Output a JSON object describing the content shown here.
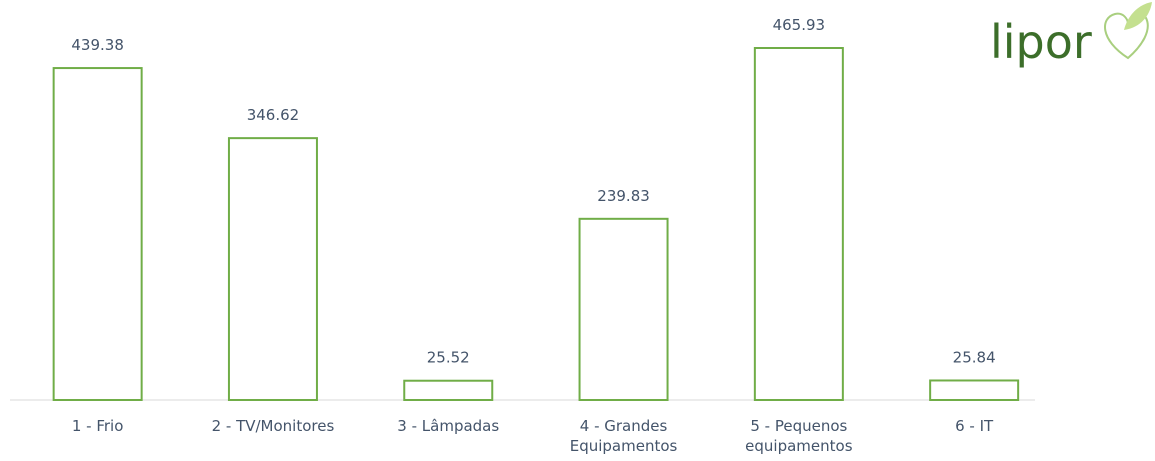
{
  "logo": "lipor",
  "chart_data": {
    "type": "bar",
    "categories": [
      "1 - Frio",
      "2 - TV/Monitores",
      "3 - Lâmpadas",
      "4 - Grandes Equipamentos",
      "5 - Pequenos equipamentos",
      "6 - IT"
    ],
    "values": [
      439.38,
      346.62,
      25.52,
      239.83,
      465.93,
      25.84
    ],
    "color": "#70ad47"
  }
}
